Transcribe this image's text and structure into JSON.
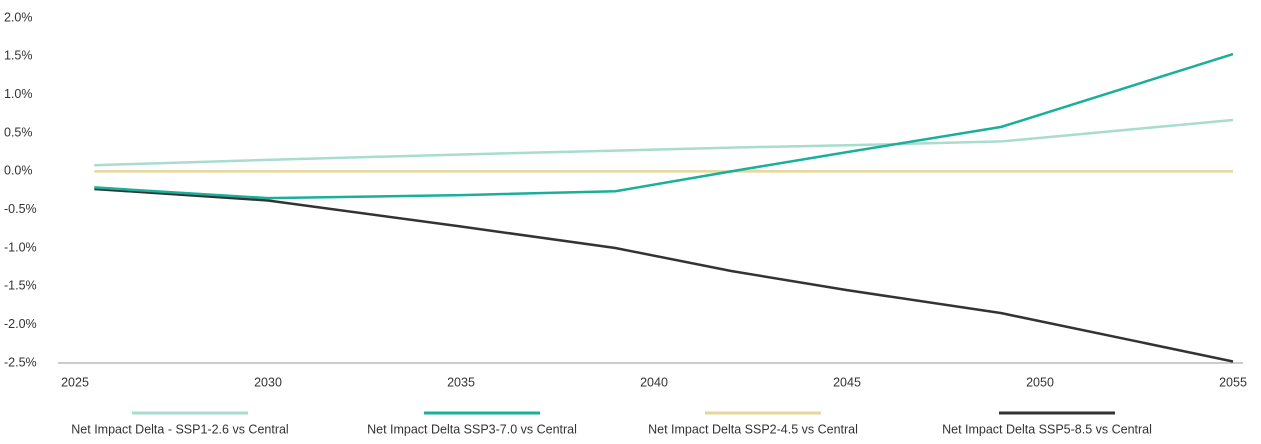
{
  "chart_data": {
    "type": "line",
    "x": [
      2025.5,
      2030,
      2035,
      2039,
      2042,
      2045,
      2049,
      2055
    ],
    "series": [
      {
        "name": "Net Impact Delta - SSP1-2.6 vs Central",
        "color": "#a8dccf",
        "values": [
          0.08,
          0.15,
          0.22,
          0.27,
          0.31,
          0.34,
          0.39,
          0.67
        ]
      },
      {
        "name": "Net Impact Delta SSP3-7.0 vs Central",
        "color": "#1aaf9a",
        "values": [
          -0.21,
          -0.35,
          -0.31,
          -0.26,
          0.0,
          0.25,
          0.58,
          1.53
        ]
      },
      {
        "name": "Net Impact Delta SSP2-4.5 vs Central",
        "color": "#e6d69a",
        "values": [
          0,
          0,
          0,
          0,
          0,
          0,
          0,
          0
        ]
      },
      {
        "name": "Net Impact Delta SSP5-8.5 vs Central",
        "color": "#333333",
        "values": [
          -0.23,
          -0.38,
          -0.72,
          -1.0,
          -1.3,
          -1.55,
          -1.85,
          -2.48
        ]
      }
    ],
    "xlim": [
      2025,
      2055
    ],
    "xticks": [
      2025,
      2030,
      2035,
      2040,
      2045,
      2050,
      2055
    ],
    "ylim": [
      -2.5,
      2.0
    ],
    "yticks": [
      {
        "value": 2.0,
        "label": "2.0%"
      },
      {
        "value": 1.5,
        "label": "1.5%"
      },
      {
        "value": 1.0,
        "label": "1.0%"
      },
      {
        "value": 0.5,
        "label": "0.5%"
      },
      {
        "value": 0.0,
        "label": "0.0%"
      },
      {
        "value": -0.5,
        "label": "-0.5%"
      },
      {
        "value": -1.0,
        "label": "-1.0%"
      },
      {
        "value": -1.5,
        "label": "-1.5%"
      },
      {
        "value": -2.0,
        "label": "-2.0%"
      },
      {
        "value": -2.5,
        "label": "-2.5%"
      }
    ],
    "legend": "bottom"
  }
}
